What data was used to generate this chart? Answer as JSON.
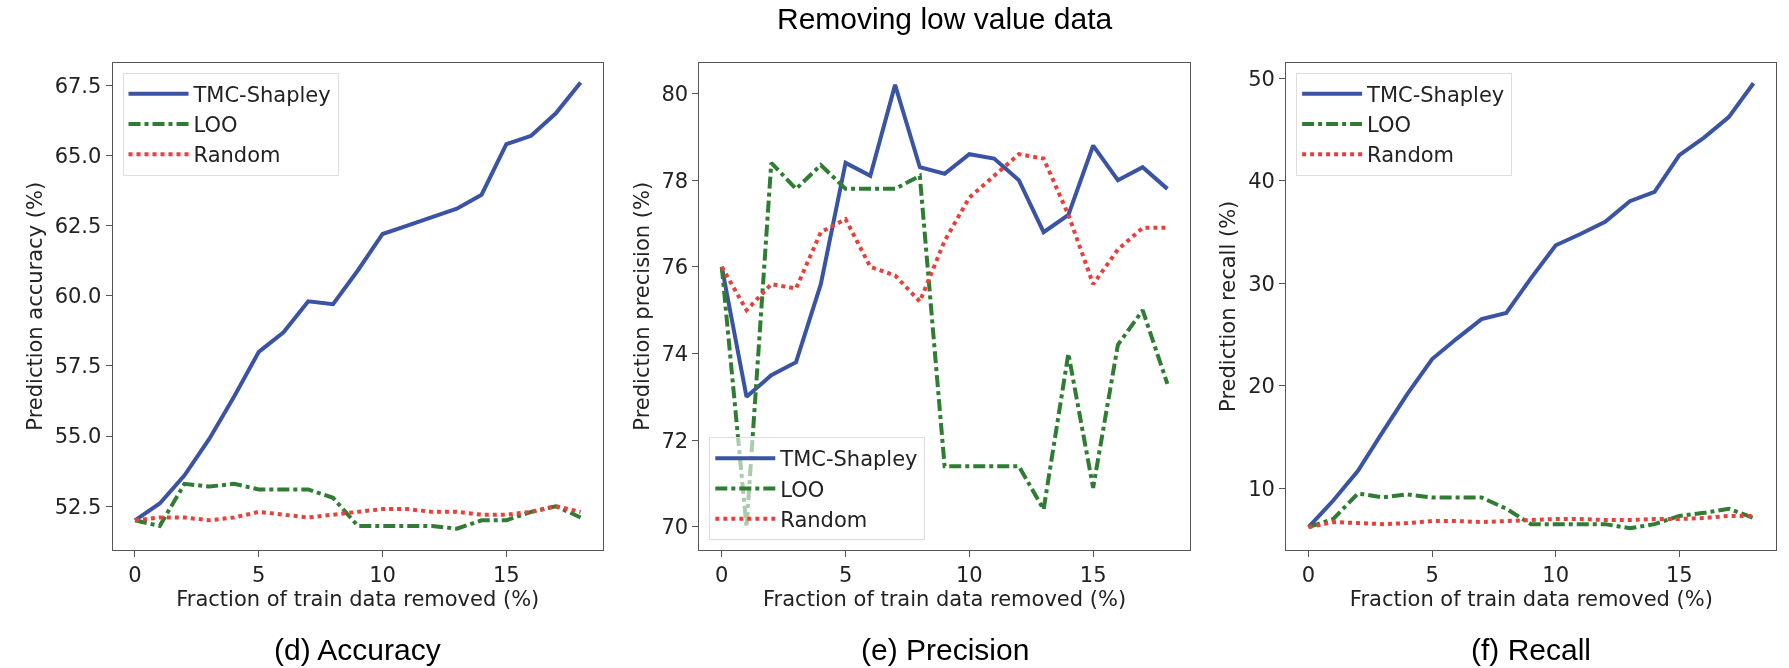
{
  "chart_data": [
    {
      "type": "line",
      "xlabel": "Fraction of train data removed (%)",
      "ylabel": "Prediction accuracy (%)",
      "annotations": [
        "(d) Accuracy"
      ],
      "x": [
        0,
        1,
        2,
        3,
        4,
        5,
        6,
        7,
        8,
        9,
        10,
        11,
        12,
        13,
        14,
        15,
        16,
        17,
        18
      ],
      "series": [
        {
          "name": "TMC-Shapley",
          "color": "#3a53a4",
          "line_style": "solid",
          "values": [
            52.0,
            52.6,
            53.6,
            54.9,
            56.4,
            58.0,
            58.7,
            59.8,
            59.7,
            60.9,
            62.2,
            62.5,
            62.8,
            63.1,
            63.6,
            65.4,
            65.7,
            66.5,
            67.6
          ]
        },
        {
          "name": "LOO",
          "color": "#2e7d32",
          "line_style": "dashdot",
          "values": [
            52.0,
            51.8,
            53.3,
            53.2,
            53.3,
            53.1,
            53.1,
            53.1,
            52.8,
            51.8,
            51.8,
            51.8,
            51.8,
            51.7,
            52.0,
            52.0,
            52.3,
            52.5,
            52.1
          ]
        },
        {
          "name": "Random",
          "color": "#e8403a",
          "line_style": "dotted",
          "values": [
            52.0,
            52.1,
            52.1,
            52.0,
            52.1,
            52.3,
            52.2,
            52.1,
            52.2,
            52.3,
            52.4,
            52.4,
            52.3,
            52.3,
            52.2,
            52.2,
            52.3,
            52.5,
            52.3
          ]
        }
      ],
      "xlim": [
        -0.9,
        18.9
      ],
      "xticks": [
        0,
        5,
        10,
        15
      ],
      "ylim": [
        50.95,
        68.3
      ],
      "yticks": [
        52.5,
        {
          "value": 55,
          "label": "55.0"
        },
        57.5,
        {
          "value": 60,
          "label": "60.0"
        },
        62.5,
        {
          "value": 65,
          "label": "65.0"
        },
        67.5
      ],
      "legend": "top left"
    },
    {
      "type": "line",
      "title": "Removing low value data",
      "xlabel": "Fraction of train data removed (%)",
      "ylabel": "Prediction precision (%)",
      "annotations": [
        "(e) Precision"
      ],
      "x": [
        0,
        1,
        2,
        3,
        4,
        5,
        6,
        7,
        8,
        9,
        10,
        11,
        12,
        13,
        14,
        15,
        16,
        17,
        18
      ],
      "series": [
        {
          "name": "TMC-Shapley",
          "color": "#3a53a4",
          "line_style": "solid",
          "values": [
            76.0,
            73.0,
            73.5,
            73.8,
            75.6,
            78.4,
            78.1,
            80.2,
            78.3,
            78.15,
            78.6,
            78.5,
            78.0,
            76.8,
            77.2,
            78.8,
            78.0,
            78.3,
            77.8
          ]
        },
        {
          "name": "LOO",
          "color": "#2e7d32",
          "line_style": "dashdot",
          "values": [
            76.0,
            70.0,
            78.4,
            77.8,
            78.35,
            77.8,
            77.8,
            77.8,
            78.1,
            71.4,
            71.4,
            71.4,
            71.4,
            70.4,
            74.0,
            70.9,
            74.2,
            75.0,
            73.3
          ]
        },
        {
          "name": "Random",
          "color": "#e8403a",
          "line_style": "dotted",
          "values": [
            76.0,
            75.0,
            75.6,
            75.5,
            76.8,
            77.1,
            76.0,
            75.8,
            75.2,
            76.6,
            77.6,
            78.1,
            78.6,
            78.5,
            77.2,
            75.6,
            76.4,
            76.9,
            76.9
          ]
        }
      ],
      "xlim": [
        -0.9,
        18.9
      ],
      "xticks": [
        0,
        5,
        10,
        15
      ],
      "ylim": [
        69.47,
        80.71
      ],
      "yticks": [
        70,
        72,
        74,
        76,
        78,
        80
      ],
      "legend": "bottom left"
    },
    {
      "type": "line",
      "xlabel": "Fraction of train data removed (%)",
      "ylabel": "Prediction recall (%)",
      "annotations": [
        "(f) Recall"
      ],
      "x": [
        0,
        1,
        2,
        3,
        4,
        5,
        6,
        7,
        8,
        9,
        10,
        11,
        12,
        13,
        14,
        15,
        16,
        17,
        18
      ],
      "series": [
        {
          "name": "TMC-Shapley",
          "color": "#3a53a4",
          "line_style": "solid",
          "values": [
            6.2,
            8.8,
            11.7,
            15.5,
            19.2,
            22.6,
            24.6,
            26.5,
            27.1,
            30.5,
            33.7,
            34.8,
            36.0,
            38.0,
            38.9,
            42.5,
            44.2,
            46.2,
            49.5
          ]
        },
        {
          "name": "LOO",
          "color": "#2e7d32",
          "line_style": "dashdot",
          "values": [
            6.2,
            7.0,
            9.5,
            9.1,
            9.4,
            9.1,
            9.1,
            9.1,
            8.0,
            6.5,
            6.5,
            6.5,
            6.5,
            6.1,
            6.5,
            7.3,
            7.6,
            8.0,
            7.1
          ]
        },
        {
          "name": "Random",
          "color": "#e8403a",
          "line_style": "dotted",
          "values": [
            6.2,
            6.7,
            6.6,
            6.5,
            6.6,
            6.8,
            6.8,
            6.7,
            6.8,
            6.9,
            7.0,
            7.0,
            6.9,
            6.9,
            7.0,
            7.0,
            7.1,
            7.3,
            7.3
          ]
        }
      ],
      "xlim": [
        -0.9,
        18.93
      ],
      "xticks": [
        0,
        5,
        10,
        15
      ],
      "ylim": [
        4.0,
        51.5
      ],
      "yticks": [
        10,
        20,
        30,
        40,
        50
      ],
      "legend": "top left"
    }
  ]
}
